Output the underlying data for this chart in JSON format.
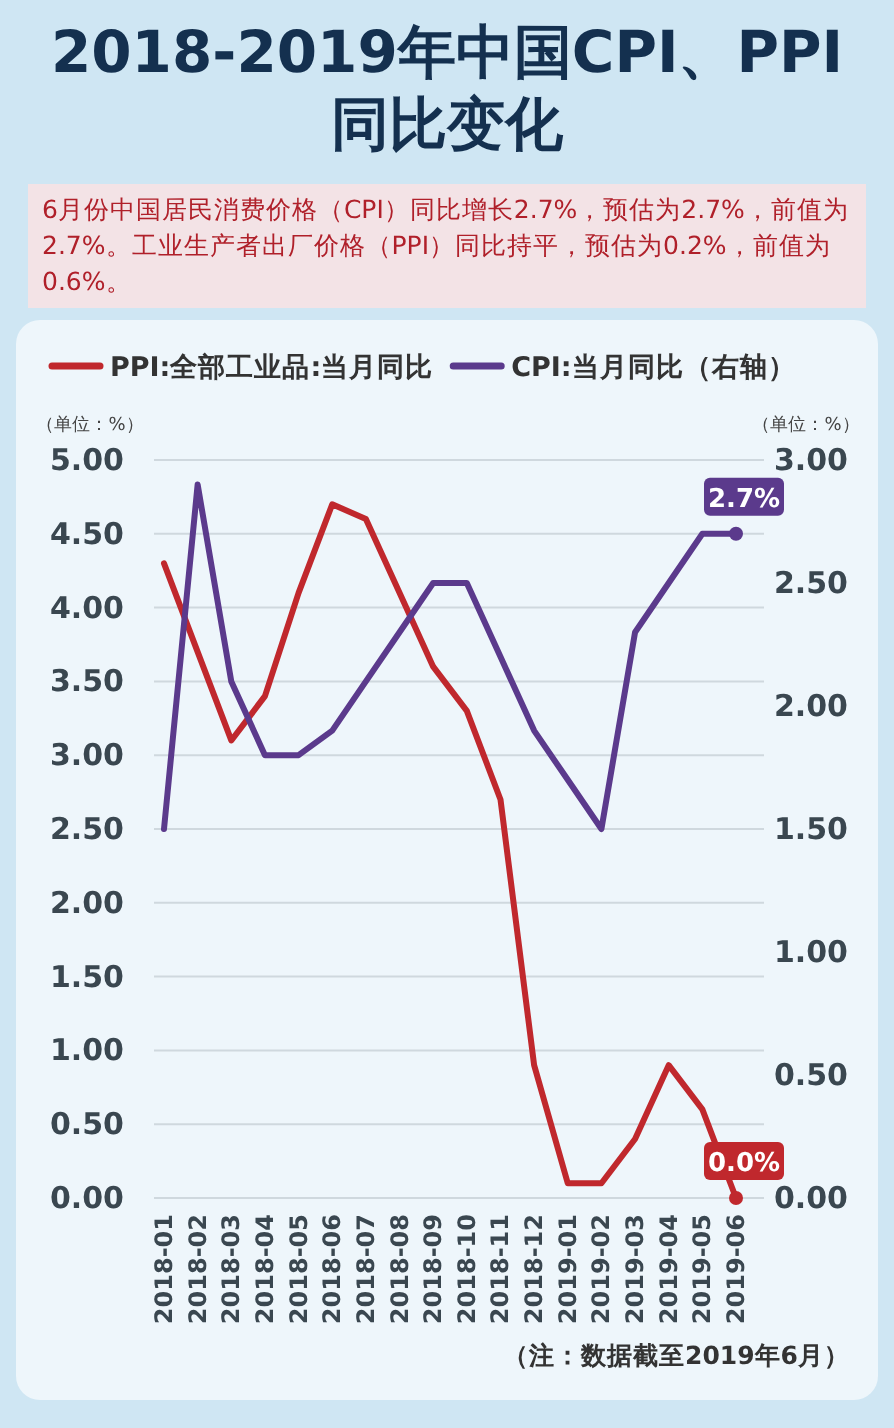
{
  "chart_data": {
    "type": "line",
    "title": "2018-2019年中国CPI、PPI同比变化",
    "subtitle": "6月份中国居民消费价格（CPI）同比增长2.7%，预估为2.7%，前值为2.7%。工业生产者出厂价格（PPI）同比持平，预估为0.2%，前值为0.6%。",
    "ylabel": "（单位：%）",
    "y2label": "（单位：%）",
    "annotations": [
      "（注：数据截至2019年6月）"
    ],
    "categories": [
      "2018-01",
      "2018-02",
      "2018-03",
      "2018-04",
      "2018-05",
      "2018-06",
      "2018-07",
      "2018-08",
      "2018-09",
      "2018-10",
      "2018-11",
      "2018-12",
      "2019-01",
      "2019-02",
      "2019-03",
      "2019-04",
      "2019-05",
      "2019-06"
    ],
    "series": [
      {
        "name": "PPI:全部工业品:当月同比",
        "color": "#c0282d",
        "values": [
          4.3,
          3.7,
          3.1,
          3.4,
          4.1,
          4.7,
          4.6,
          4.1,
          3.6,
          3.3,
          2.7,
          0.9,
          0.1,
          0.1,
          0.4,
          0.9,
          0.6,
          0.0
        ],
        "value_labels": [
          null,
          null,
          null,
          null,
          null,
          null,
          null,
          null,
          null,
          null,
          null,
          null,
          null,
          null,
          null,
          null,
          null,
          "0.0%"
        ]
      },
      {
        "name": "CPI:当月同比（右轴）",
        "color": "#5b3a8c",
        "axis": "y2",
        "values": [
          1.5,
          2.9,
          2.1,
          1.8,
          1.8,
          1.9,
          2.1,
          2.3,
          2.5,
          2.5,
          2.2,
          1.9,
          1.7,
          1.5,
          2.3,
          2.5,
          2.7,
          2.7
        ],
        "value_labels": [
          null,
          null,
          null,
          null,
          null,
          null,
          null,
          null,
          null,
          null,
          null,
          null,
          null,
          null,
          null,
          null,
          null,
          "2.7%"
        ]
      }
    ],
    "ylim": [
      0,
      5
    ],
    "yticks": [
      {
        "value": 0,
        "label": "0.00"
      },
      {
        "value": 0.5,
        "label": "0.50"
      },
      {
        "value": 1,
        "label": "1.00"
      },
      {
        "value": 1.5,
        "label": "1.50"
      },
      {
        "value": 2,
        "label": "2.00"
      },
      {
        "value": 2.5,
        "label": "2.50"
      },
      {
        "value": 3,
        "label": "3.00"
      },
      {
        "value": 3.5,
        "label": "3.50"
      },
      {
        "value": 4,
        "label": "4.00"
      },
      {
        "value": 4.5,
        "label": "4.50"
      },
      {
        "value": 5,
        "label": "5.00"
      }
    ],
    "y2lim": [
      0,
      3
    ],
    "y2ticks": [
      {
        "value": 0,
        "label": "0.00"
      },
      {
        "value": 0.5,
        "label": "0.50"
      },
      {
        "value": 1,
        "label": "1.00"
      },
      {
        "value": 1.5,
        "label": "1.50"
      },
      {
        "value": 2,
        "label": "2.00"
      },
      {
        "value": 2.5,
        "label": "2.50"
      },
      {
        "value": 3,
        "label": "3.00"
      }
    ],
    "grid": "y",
    "legend": "top",
    "marker": "none",
    "line_style": "solid"
  }
}
